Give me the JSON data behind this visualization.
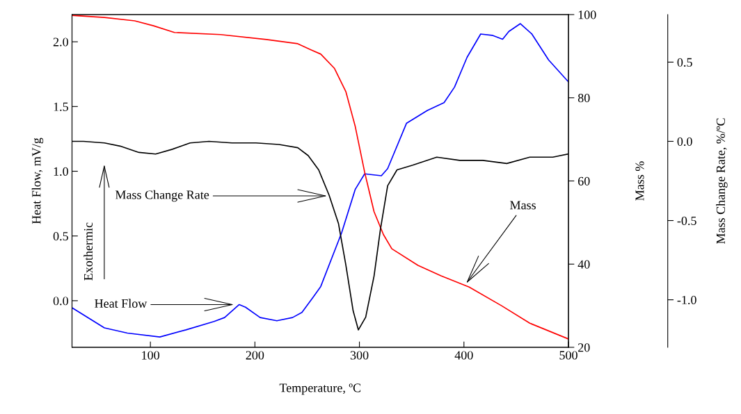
{
  "chart_data": {
    "type": "line",
    "xlabel": "Temperature, ºC",
    "ylabel": "Heat Flow, mV/g",
    "y2label": "Mass %",
    "y3label": "Mass Change Rate, %/ºC",
    "xlim": [
      25,
      500
    ],
    "xticks": [
      100,
      200,
      300,
      400,
      500
    ],
    "ylim": [
      -0.36,
      2.21
    ],
    "yticks": [
      {
        "value": 0,
        "label": "0.0"
      },
      0.5,
      {
        "value": 1,
        "label": "1.0"
      },
      1.5,
      {
        "value": 2,
        "label": "2.0"
      }
    ],
    "y2lim": [
      20,
      100
    ],
    "y2ticks": [
      20,
      40,
      60,
      80,
      100
    ],
    "y3lim": [
      -1.3,
      0.8
    ],
    "y3ticks": [
      {
        "value": -1,
        "label": "-1.0"
      },
      -0.5,
      {
        "value": 0,
        "label": "0.0"
      },
      0.5
    ],
    "grid": false,
    "legend": false,
    "marker": "none",
    "line_style": "solid",
    "series": [
      {
        "color": "#0000ff",
        "x": [
          25,
          56,
          78,
          109,
          134,
          161,
          171,
          185,
          191,
          205,
          221,
          236,
          245,
          256,
          263,
          283,
          296,
          305,
          321,
          327,
          345,
          365,
          381,
          391,
          403,
          416,
          427,
          437,
          443,
          454,
          465,
          481,
          500
        ],
        "values": [
          -0.054,
          -0.21,
          -0.25,
          -0.28,
          -0.225,
          -0.16,
          -0.13,
          -0.03,
          -0.05,
          -0.13,
          -0.155,
          -0.13,
          -0.09,
          0.03,
          0.11,
          0.525,
          0.86,
          0.98,
          0.965,
          1.02,
          1.37,
          1.47,
          1.53,
          1.65,
          1.88,
          2.06,
          2.05,
          2.02,
          2.08,
          2.14,
          2.06,
          1.86,
          1.69
        ]
      },
      {
        "axis": "y2",
        "color": "#ff0000",
        "x": [
          25,
          56,
          85,
          103,
          123,
          167,
          211,
          241,
          254,
          263,
          276,
          287,
          296,
          305,
          314,
          323,
          331,
          356,
          378,
          405,
          436,
          463,
          500
        ],
        "values": [
          99.8,
          99.3,
          98.5,
          97.3,
          95.7,
          95.2,
          94.0,
          93.0,
          91.5,
          90.5,
          87.1,
          81.5,
          73.1,
          62.1,
          52.6,
          47.1,
          43.7,
          39.7,
          37.2,
          34.5,
          30.0,
          25.8,
          22.0
        ]
      },
      {
        "axis": "y3",
        "color": "#000000",
        "x": [
          25,
          36,
          56,
          71,
          89,
          105,
          121,
          138,
          156,
          178,
          201,
          223,
          241,
          251,
          261,
          271,
          280,
          287,
          294,
          299,
          306,
          314,
          320,
          327,
          336,
          351,
          374,
          396,
          418,
          441,
          463,
          485,
          500
        ],
        "values": [
          0.0,
          0.0,
          -0.01,
          -0.03,
          -0.07,
          -0.08,
          -0.05,
          -0.01,
          0.0,
          -0.01,
          -0.01,
          -0.02,
          -0.04,
          -0.09,
          -0.18,
          -0.34,
          -0.52,
          -0.78,
          -1.07,
          -1.19,
          -1.11,
          -0.85,
          -0.56,
          -0.28,
          -0.18,
          -0.15,
          -0.1,
          -0.12,
          -0.12,
          -0.14,
          -0.1,
          -0.1,
          -0.08
        ]
      }
    ],
    "annotations": [
      {
        "text": "Heat Flow",
        "x": 180,
        "y": -0.03
      },
      "Mass",
      "Mass Change Rate",
      "Exothermic"
    ]
  }
}
